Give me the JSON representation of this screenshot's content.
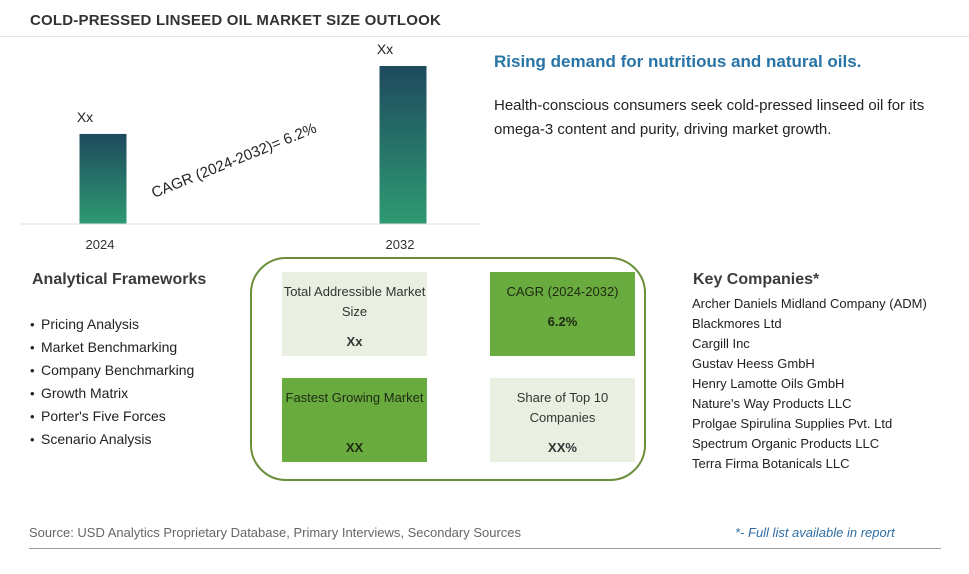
{
  "title": "COLD-PRESSED LINSEED OIL MARKET SIZE OUTLOOK",
  "chart_data": {
    "type": "bar",
    "categories": [
      "2024",
      "2032"
    ],
    "values": [
      0.57,
      1.0
    ],
    "value_labels": [
      "Xx",
      "Xx"
    ],
    "annotation": "CAGR (2024-2032)=  6.2%",
    "colors": {
      "bar_top": "#1e4a5e",
      "bar_bottom": "#2e9a72"
    }
  },
  "headline": "Rising demand for nutritious and natural oils.",
  "description": "Health-conscious consumers seek cold-pressed linseed oil for its omega-3 content and purity, driving market growth.",
  "frameworks": {
    "title": "Analytical Frameworks",
    "items": [
      "Pricing Analysis",
      "Market Benchmarking",
      "Company Benchmarking",
      "Growth Matrix",
      "Porter's Five Forces",
      "Scenario Analysis"
    ]
  },
  "tiles": {
    "tam": {
      "label": "Total Addressible Market Size",
      "value": "Xx"
    },
    "cagr": {
      "label": "CAGR (2024-2032)",
      "value": "6.2%"
    },
    "fastest": {
      "label": "Fastest Growing Market",
      "value": "XX"
    },
    "share": {
      "label": "Share of Top 10 Companies",
      "value": "XX%"
    }
  },
  "key_companies": {
    "title": "Key Companies*",
    "items": [
      "Archer Daniels Midland Company (ADM)",
      "Blackmores Ltd",
      "Cargill Inc",
      "Gustav Heess GmbH",
      "Henry Lamotte Oils GmbH",
      "Nature's Way Products LLC",
      "Prolgae Spirulina Supplies Pvt. Ltd",
      "Spectrum Organic Products LLC",
      "Terra Firma Botanicals LLC"
    ]
  },
  "footer": {
    "source": "Source: USD Analytics Proprietary Database, Primary Interviews, Secondary Sources",
    "note": "*- Full list available in report"
  },
  "colors": {
    "accent_blue": "#2874a6",
    "panel_border": "#6b8e3a",
    "tile_dark": "#6aab3f",
    "tile_light": "#e9f0e2"
  }
}
